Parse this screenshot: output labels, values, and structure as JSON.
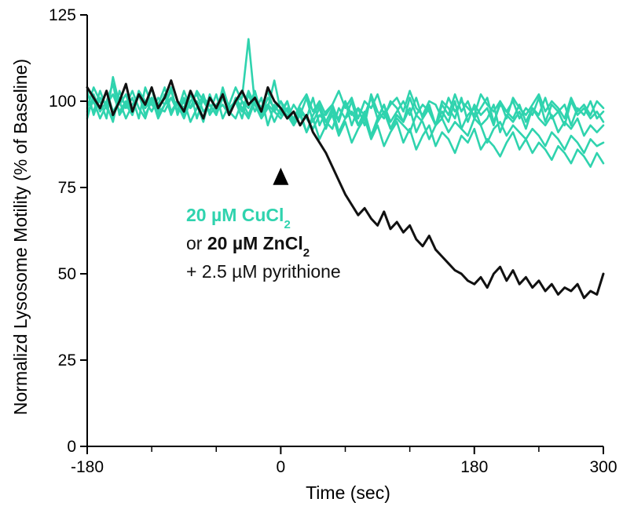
{
  "colors": {
    "cu": "#2fd3ae",
    "zn": "#111111",
    "axis": "#000000",
    "background": "#ffffff"
  },
  "chart_data": {
    "type": "line",
    "xlabel": "Time (sec)",
    "ylabel": "Normalizd Lysosome Motility (% of Baseline)",
    "xlim": [
      -180,
      300
    ],
    "ylim": [
      0,
      125
    ],
    "x_ticks": [
      -180,
      0,
      180,
      300
    ],
    "x_tick_labels": [
      "-180",
      "0",
      "180",
      "300"
    ],
    "x_minor_ticks": [
      -120,
      -60,
      60,
      120,
      240
    ],
    "y_ticks": [
      0,
      25,
      50,
      75,
      100,
      125
    ],
    "y_tick_labels": [
      "0",
      "25",
      "50",
      "75",
      "100",
      "125"
    ],
    "grid": false,
    "marker": {
      "x": 0,
      "y": 78,
      "label": "treatment onset (arrowhead)"
    },
    "annotation": {
      "line1": {
        "main": "20 µM CuCl",
        "sub": "2"
      },
      "line2": {
        "prefix": "or ",
        "main": "20 µM ZnCl",
        "sub": "2"
      },
      "line3": "+ 2.5 µM pyrithione"
    },
    "x": [
      -180,
      -174,
      -168,
      -162,
      -156,
      -150,
      -144,
      -138,
      -132,
      -126,
      -120,
      -114,
      -108,
      -102,
      -96,
      -90,
      -84,
      -78,
      -72,
      -66,
      -60,
      -54,
      -48,
      -42,
      -36,
      -30,
      -24,
      -18,
      -12,
      -6,
      0,
      6,
      12,
      18,
      24,
      30,
      36,
      42,
      48,
      54,
      60,
      66,
      72,
      78,
      84,
      90,
      96,
      102,
      108,
      114,
      120,
      126,
      132,
      138,
      144,
      150,
      156,
      162,
      168,
      174,
      180,
      186,
      192,
      198,
      204,
      210,
      216,
      222,
      228,
      234,
      240,
      246,
      252,
      258,
      264,
      270,
      276,
      282,
      288,
      294,
      300
    ],
    "series": [
      {
        "group": "CuCl2",
        "values": [
          98,
          104,
          100,
          95,
          107,
          99,
          102,
          96,
          103,
          100,
          97,
          101,
          99,
          104,
          96,
          101,
          98,
          103,
          100,
          97,
          102,
          95,
          99,
          104,
          100,
          96,
          101,
          98,
          103,
          97,
          100,
          95,
          99,
          96,
          101,
          94,
          98,
          92,
          97,
          95,
          100,
          93,
          98,
          96,
          101,
          95,
          99,
          94,
          97,
          100,
          96,
          101,
          95,
          98,
          93,
          99,
          96,
          102,
          97,
          100,
          95,
          98,
          101,
          94,
          99,
          97,
          100,
          95,
          98,
          96,
          101,
          94,
          99,
          97,
          93,
          100,
          96,
          98,
          95,
          97,
          94
        ]
      },
      {
        "group": "CuCl2",
        "values": [
          103,
          96,
          101,
          99,
          94,
          103,
          98,
          101,
          95,
          104,
          99,
          97,
          102,
          96,
          100,
          98,
          103,
          95,
          101,
          99,
          96,
          104,
          98,
          100,
          95,
          102,
          97,
          101,
          93,
          99,
          96,
          100,
          94,
          98,
          95,
          101,
          93,
          97,
          99,
          94,
          100,
          96,
          98,
          93,
          102,
          97,
          95,
          100,
          98,
          94,
          101,
          96,
          99,
          97,
          93,
          100,
          98,
          95,
          101,
          94,
          99,
          96,
          98,
          93,
          100,
          97,
          95,
          99,
          94,
          98,
          96,
          101,
          95,
          97,
          99,
          93,
          98,
          96,
          100,
          95,
          97
        ]
      },
      {
        "group": "CuCl2",
        "values": [
          95,
          102,
          97,
          100,
          105,
          96,
          99,
          103,
          98,
          95,
          101,
          99,
          104,
          97,
          100,
          96,
          102,
          99,
          94,
          101,
          98,
          103,
          97,
          100,
          101,
          118,
          99,
          95,
          98,
          106,
          97,
          100,
          93,
          97,
          91,
          96,
          99,
          94,
          92,
          98,
          95,
          100,
          93,
          97,
          90,
          95,
          99,
          92,
          96,
          94,
          98,
          91,
          95,
          99,
          93,
          97,
          94,
          100,
          92,
          96,
          98,
          93,
          95,
          99,
          91,
          96,
          94,
          97,
          92,
          98,
          95,
          93,
          96,
          91,
          94,
          92,
          95,
          90,
          93,
          91,
          93
        ]
      },
      {
        "group": "CuCl2",
        "values": [
          100,
          97,
          103,
          98,
          95,
          101,
          99,
          96,
          102,
          98,
          104,
          96,
          99,
          101,
          97,
          103,
          98,
          100,
          95,
          102,
          97,
          99,
          96,
          101,
          98,
          95,
          100,
          97,
          99,
          94,
          98,
          96,
          93,
          97,
          95,
          92,
          96,
          94,
          98,
          91,
          95,
          97,
          93,
          96,
          90,
          94,
          97,
          92,
          95,
          93,
          91,
          96,
          94,
          89,
          93,
          95,
          91,
          94,
          92,
          90,
          95,
          93,
          88,
          92,
          94,
          90,
          93,
          91,
          89,
          92,
          90,
          87,
          91,
          89,
          86,
          90,
          88,
          85,
          89,
          87,
          88
        ]
      },
      {
        "group": "CuCl2",
        "values": [
          97,
          100,
          95,
          99,
          102,
          97,
          100,
          96,
          103,
          98,
          101,
          95,
          99,
          103,
          97,
          100,
          94,
          98,
          102,
          96,
          99,
          101,
          97,
          95,
          100,
          98,
          103,
          96,
          99,
          97,
          95,
          98,
          93,
          96,
          91,
          95,
          89,
          93,
          96,
          90,
          94,
          88,
          92,
          95,
          89,
          93,
          87,
          91,
          94,
          88,
          92,
          86,
          90,
          93,
          87,
          91,
          89,
          85,
          90,
          88,
          92,
          86,
          89,
          87,
          84,
          88,
          91,
          86,
          89,
          85,
          88,
          86,
          83,
          87,
          85,
          82,
          86,
          84,
          81,
          85,
          82
        ]
      },
      {
        "group": "CuCl2",
        "values": [
          96,
          101,
          98,
          103,
          97,
          100,
          95,
          99,
          102,
          96,
          100,
          98,
          97,
          101,
          99,
          95,
          100,
          102,
          97,
          99,
          96,
          101,
          98,
          100,
          97,
          103,
          99,
          96,
          101,
          98,
          100,
          97,
          95,
          99,
          102,
          97,
          100,
          96,
          99,
          103,
          98,
          101,
          95,
          100,
          98,
          102,
          96,
          99,
          101,
          97,
          103,
          98,
          96,
          100,
          99,
          95,
          101,
          97,
          100,
          98,
          96,
          102,
          99,
          97,
          100,
          95,
          101,
          98,
          96,
          99,
          102,
          97,
          100,
          98,
          95,
          101,
          97,
          99,
          96,
          100,
          98
        ]
      },
      {
        "group": "ZnCl2",
        "values": [
          104,
          101,
          98,
          103,
          96,
          100,
          105,
          97,
          102,
          99,
          104,
          98,
          101,
          106,
          100,
          97,
          103,
          99,
          95,
          101,
          98,
          102,
          96,
          100,
          103,
          99,
          101,
          97,
          104,
          100,
          98,
          95,
          97,
          93,
          96,
          91,
          88,
          85,
          81,
          77,
          73,
          70,
          67,
          69,
          66,
          64,
          68,
          63,
          65,
          62,
          64,
          60,
          58,
          61,
          57,
          55,
          53,
          51,
          50,
          48,
          47,
          49,
          46,
          50,
          52,
          48,
          51,
          47,
          49,
          46,
          48,
          45,
          47,
          44,
          46,
          45,
          47,
          43,
          45,
          44,
          50
        ]
      }
    ]
  }
}
